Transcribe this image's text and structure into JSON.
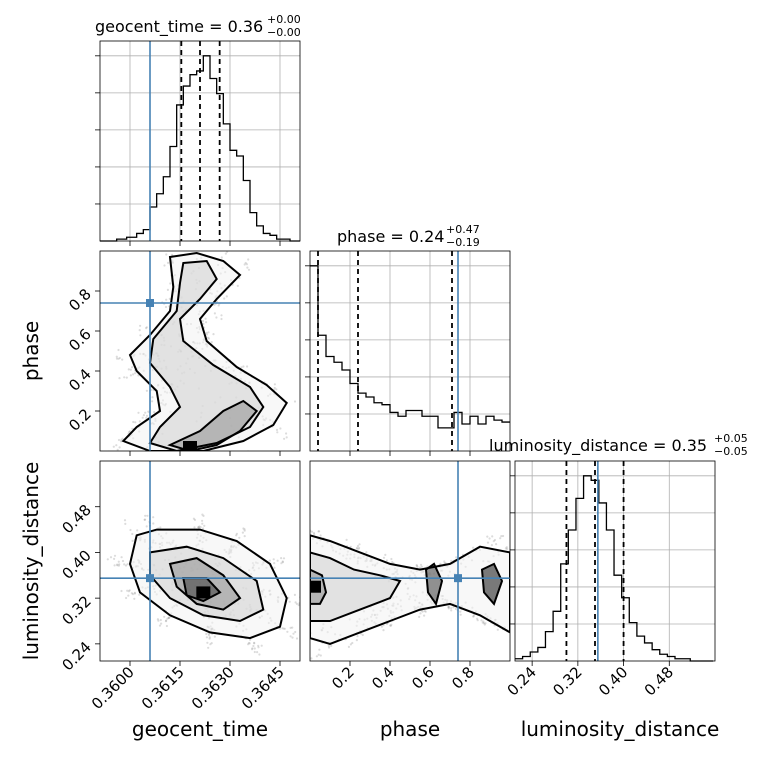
{
  "chart_data": {
    "type": "corner",
    "parameters": [
      "geocent_time",
      "phase",
      "luminosity_distance"
    ],
    "truths": [
      0.3606,
      0.74,
      0.355
    ],
    "colors": {
      "truth": "#4682b4",
      "hist": "#000000",
      "grid": "#b0b0b0",
      "density": "#000000"
    },
    "ranges": [
      [
        0.3591,
        0.3651
      ],
      [
        0.0,
        1.0
      ],
      [
        0.21,
        0.56
      ]
    ],
    "titles": [
      {
        "param": "geocent_time",
        "median": "0.36",
        "plus": "+0.00",
        "minus": "−0.00"
      },
      {
        "param": "phase",
        "median": "0.24",
        "plus": "+0.47",
        "minus": "−0.19"
      },
      {
        "param": "luminosity_distance",
        "median": "0.35",
        "plus": "+0.05",
        "minus": "−0.05"
      }
    ],
    "ticks": {
      "geocent_time": [
        "0.3600",
        "0.3615",
        "0.3630",
        "0.3645"
      ],
      "phase": [
        "0.2",
        "0.4",
        "0.6",
        "0.8"
      ],
      "luminosity_distance": [
        "0.24",
        "0.32",
        "0.40",
        "0.48"
      ]
    },
    "tick_values": {
      "geocent_time": [
        0.36,
        0.3615,
        0.363,
        0.3645
      ],
      "phase": [
        0.2,
        0.4,
        0.6,
        0.8
      ],
      "luminosity_distance": [
        0.24,
        0.32,
        0.4,
        0.48
      ]
    },
    "quantiles": {
      "geocent_time": [
        0.36154,
        0.3621,
        0.36269
      ],
      "phase": [
        0.04,
        0.24,
        0.71
      ],
      "luminosity_distance": [
        0.3,
        0.35,
        0.4
      ]
    },
    "histograms": {
      "geocent_time": {
        "edges": [
          0.3591,
          0.3592,
          0.3593,
          0.3594,
          0.3595,
          0.3596,
          0.3597,
          0.3598,
          0.3599,
          0.36,
          0.3601,
          0.3602,
          0.3603,
          0.3604,
          0.3605,
          0.3606,
          0.3607,
          0.3608,
          0.3609,
          0.361,
          0.3611,
          0.3612,
          0.3613,
          0.3614,
          0.3615,
          0.3616,
          0.3617,
          0.3618,
          0.3619,
          0.362,
          0.3621,
          0.3622,
          0.3623,
          0.3624,
          0.3625,
          0.3626,
          0.3627,
          0.3628,
          0.3629,
          0.363,
          0.3631,
          0.3632,
          0.3633,
          0.3634,
          0.3635,
          0.3636,
          0.3637,
          0.3638,
          0.3639,
          0.364,
          0.3641,
          0.3642,
          0.3643,
          0.3644,
          0.3645,
          0.3646,
          0.3647,
          0.3648,
          0.3649,
          0.365,
          0.3651
        ],
        "counts": [
          0,
          0,
          0,
          0,
          0,
          1,
          1,
          1,
          2,
          2,
          2,
          4,
          4,
          6,
          6,
          18,
          18,
          25,
          25,
          34,
          34,
          50,
          50,
          72,
          72,
          82,
          82,
          88,
          88,
          90,
          90,
          98,
          98,
          86,
          86,
          78,
          78,
          62,
          62,
          48,
          48,
          45,
          45,
          32,
          32,
          15,
          15,
          8,
          8,
          4,
          4,
          3,
          3,
          1,
          1,
          1,
          1,
          0,
          0,
          0
        ]
      },
      "phase": {
        "edges": [
          0.0,
          0.04,
          0.08,
          0.12,
          0.16,
          0.2,
          0.24,
          0.28,
          0.32,
          0.36,
          0.4,
          0.44,
          0.48,
          0.52,
          0.56,
          0.6,
          0.64,
          0.68,
          0.72,
          0.76,
          0.8,
          0.84,
          0.88,
          0.92,
          0.96,
          1.0
        ],
        "counts": [
          96,
          60,
          49,
          46,
          42,
          35,
          30,
          28,
          25,
          24,
          20,
          18,
          21,
          21,
          18,
          18,
          12,
          12,
          20,
          14,
          18,
          14,
          18,
          16,
          15
        ]
      },
      "luminosity_distance": {
        "edges": [
          0.21,
          0.2233,
          0.2367,
          0.25,
          0.2633,
          0.2767,
          0.29,
          0.3033,
          0.3167,
          0.33,
          0.3433,
          0.3567,
          0.37,
          0.3833,
          0.3967,
          0.41,
          0.4233,
          0.4367,
          0.45,
          0.4633,
          0.4767,
          0.49,
          0.5033,
          0.5167,
          0.53,
          0.5433,
          0.5567
        ],
        "counts": [
          1,
          2,
          4,
          6,
          13,
          22,
          43,
          58,
          72,
          82,
          80,
          70,
          58,
          38,
          28,
          17,
          11,
          8,
          5,
          3,
          2,
          1,
          1,
          0,
          0,
          0
        ]
      }
    },
    "density_2d": {
      "geocent_time_vs_phase": {
        "contours": [
          [
            [
              0.3612,
              0.97
            ],
            [
              0.362,
              0.99
            ],
            [
              0.3628,
              0.95
            ],
            [
              0.3633,
              0.88
            ],
            [
              0.3626,
              0.76
            ],
            [
              0.3621,
              0.66
            ],
            [
              0.3623,
              0.55
            ],
            [
              0.3632,
              0.42
            ],
            [
              0.3641,
              0.33
            ],
            [
              0.3647,
              0.24
            ],
            [
              0.3643,
              0.13
            ],
            [
              0.3634,
              0.05
            ],
            [
              0.3622,
              0.0
            ],
            [
              0.3606,
              0.0
            ],
            [
              0.3598,
              0.05
            ],
            [
              0.3602,
              0.12
            ],
            [
              0.3609,
              0.2
            ],
            [
              0.3608,
              0.3
            ],
            [
              0.3602,
              0.4
            ],
            [
              0.36,
              0.48
            ],
            [
              0.3606,
              0.58
            ],
            [
              0.3612,
              0.7
            ],
            [
              0.3613,
              0.82
            ]
          ],
          [
            [
              0.3616,
              0.94
            ],
            [
              0.3623,
              0.95
            ],
            [
              0.3626,
              0.86
            ],
            [
              0.3621,
              0.76
            ],
            [
              0.3615,
              0.66
            ],
            [
              0.3616,
              0.55
            ],
            [
              0.3625,
              0.43
            ],
            [
              0.3636,
              0.32
            ],
            [
              0.364,
              0.22
            ],
            [
              0.3636,
              0.12
            ],
            [
              0.3626,
              0.04
            ],
            [
              0.3614,
              0.0
            ],
            [
              0.3606,
              0.04
            ],
            [
              0.3609,
              0.12
            ],
            [
              0.3615,
              0.22
            ],
            [
              0.3612,
              0.32
            ],
            [
              0.3606,
              0.44
            ],
            [
              0.3607,
              0.56
            ],
            [
              0.3614,
              0.7
            ],
            [
              0.3615,
              0.84
            ]
          ],
          [
            [
              0.3612,
              0.03
            ],
            [
              0.3621,
              0.1
            ],
            [
              0.3628,
              0.2
            ],
            [
              0.3634,
              0.25
            ],
            [
              0.3638,
              0.2
            ],
            [
              0.3633,
              0.1
            ],
            [
              0.3626,
              0.03
            ],
            [
              0.3618,
              0.0
            ]
          ]
        ],
        "peak": [
          0.3618,
          0.02
        ]
      },
      "geocent_time_vs_luminosity_distance": {
        "contours": [
          [
            [
              0.3602,
              0.43
            ],
            [
              0.3608,
              0.44
            ],
            [
              0.3621,
              0.44
            ],
            [
              0.3632,
              0.42
            ],
            [
              0.3642,
              0.38
            ],
            [
              0.3647,
              0.32
            ],
            [
              0.3645,
              0.27
            ],
            [
              0.3636,
              0.25
            ],
            [
              0.3624,
              0.26
            ],
            [
              0.3612,
              0.29
            ],
            [
              0.3603,
              0.33
            ],
            [
              0.36,
              0.38
            ]
          ],
          [
            [
              0.3606,
              0.4
            ],
            [
              0.3617,
              0.41
            ],
            [
              0.3628,
              0.39
            ],
            [
              0.3638,
              0.35
            ],
            [
              0.364,
              0.3
            ],
            [
              0.3633,
              0.28
            ],
            [
              0.3622,
              0.29
            ],
            [
              0.3612,
              0.32
            ],
            [
              0.3606,
              0.36
            ]
          ],
          [
            [
              0.3612,
              0.38
            ],
            [
              0.362,
              0.39
            ],
            [
              0.3628,
              0.36
            ],
            [
              0.3633,
              0.32
            ],
            [
              0.3628,
              0.3
            ],
            [
              0.362,
              0.31
            ],
            [
              0.3614,
              0.34
            ]
          ],
          [
            [
              0.3616,
              0.355
            ],
            [
              0.3623,
              0.355
            ],
            [
              0.3627,
              0.33
            ],
            [
              0.3622,
              0.315
            ],
            [
              0.3617,
              0.325
            ]
          ]
        ],
        "peak": [
          0.3622,
          0.33
        ]
      },
      "phase_vs_luminosity_distance": {
        "contours": [
          [
            [
              0.0,
              0.43
            ],
            [
              0.1,
              0.42
            ],
            [
              0.25,
              0.4
            ],
            [
              0.4,
              0.38
            ],
            [
              0.55,
              0.37
            ],
            [
              0.7,
              0.38
            ],
            [
              0.85,
              0.41
            ],
            [
              1.0,
              0.4
            ],
            [
              1.0,
              0.26
            ],
            [
              0.85,
              0.29
            ],
            [
              0.7,
              0.31
            ],
            [
              0.55,
              0.3
            ],
            [
              0.4,
              0.28
            ],
            [
              0.25,
              0.26
            ],
            [
              0.1,
              0.24
            ],
            [
              0.0,
              0.25
            ]
          ],
          [
            [
              0.0,
              0.4
            ],
            [
              0.1,
              0.39
            ],
            [
              0.22,
              0.37
            ],
            [
              0.35,
              0.36
            ],
            [
              0.45,
              0.35
            ],
            [
              0.4,
              0.32
            ],
            [
              0.25,
              0.3
            ],
            [
              0.1,
              0.28
            ],
            [
              0.0,
              0.28
            ]
          ],
          [
            [
              0.0,
              0.37
            ],
            [
              0.06,
              0.36
            ],
            [
              0.08,
              0.33
            ],
            [
              0.05,
              0.31
            ],
            [
              0.0,
              0.31
            ]
          ],
          [
            [
              0.58,
              0.37
            ],
            [
              0.62,
              0.38
            ],
            [
              0.66,
              0.35
            ],
            [
              0.63,
              0.31
            ],
            [
              0.59,
              0.33
            ]
          ],
          [
            [
              0.86,
              0.37
            ],
            [
              0.92,
              0.38
            ],
            [
              0.96,
              0.35
            ],
            [
              0.92,
              0.31
            ],
            [
              0.87,
              0.33
            ]
          ]
        ],
        "peak": [
          0.02,
          0.34
        ]
      }
    }
  }
}
